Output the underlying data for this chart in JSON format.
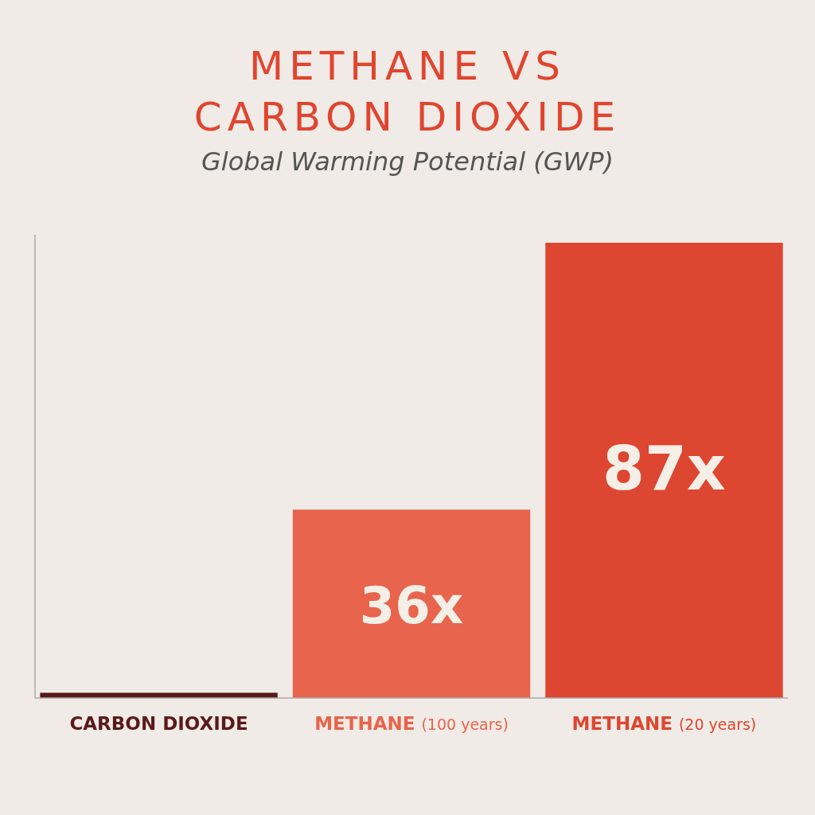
{
  "chart_data": {
    "type": "bar",
    "title": "METHANE VS CARBON DIOXIDE",
    "subtitle": "Global Warming Potential (GWP)",
    "categories": [
      "CARBON DIOXIDE",
      "METHANE (100 years)",
      "METHANE (20 years)"
    ],
    "values": [
      1,
      36,
      87
    ],
    "colors": [
      "#5a1a1a",
      "#e8644c",
      "#dd4630"
    ],
    "value_labels": [
      null,
      "36x",
      "87x"
    ]
  }
}
